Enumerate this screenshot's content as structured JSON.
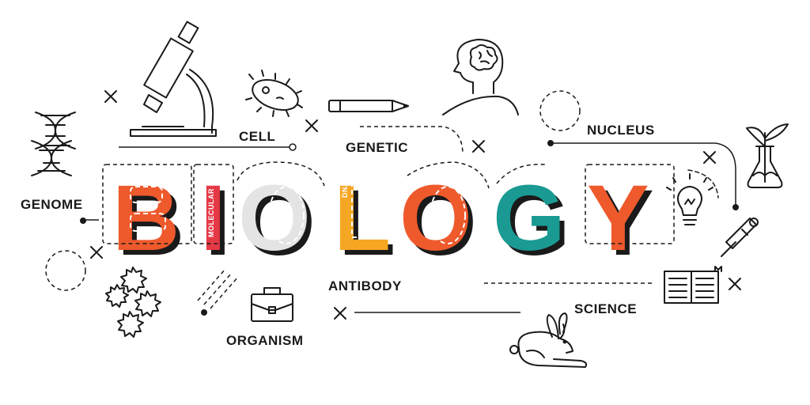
{
  "title": {
    "letters": [
      "B",
      "I",
      "O",
      "L",
      "O",
      "G",
      "Y"
    ],
    "colors": [
      "#ee5a2c",
      "#e63946",
      "#e4e4e4",
      "#f5a623",
      "#ee5a2c",
      "#1a9a93",
      "#ee5a2c"
    ],
    "shadow_color": "#1a1a1a",
    "tag_molecular": "MOLECULAR",
    "tag_dna": "DNA"
  },
  "labels": {
    "cell": "CELL",
    "genetic": "GENETIC",
    "nucleus": "NUCLEUS",
    "genome": "GENOME",
    "antibody": "ANTIBODY",
    "science": "SCIENCE",
    "organism": "ORGANISM"
  },
  "icons": [
    "dna-icon",
    "microscope-icon",
    "bacteria-icon",
    "pencil-icon",
    "brain-head-icon",
    "plant-flask-icon",
    "lightbulb-icon",
    "pipette-icon",
    "book-icon",
    "briefcase-icon",
    "virus-icon",
    "rabbit-icon"
  ]
}
